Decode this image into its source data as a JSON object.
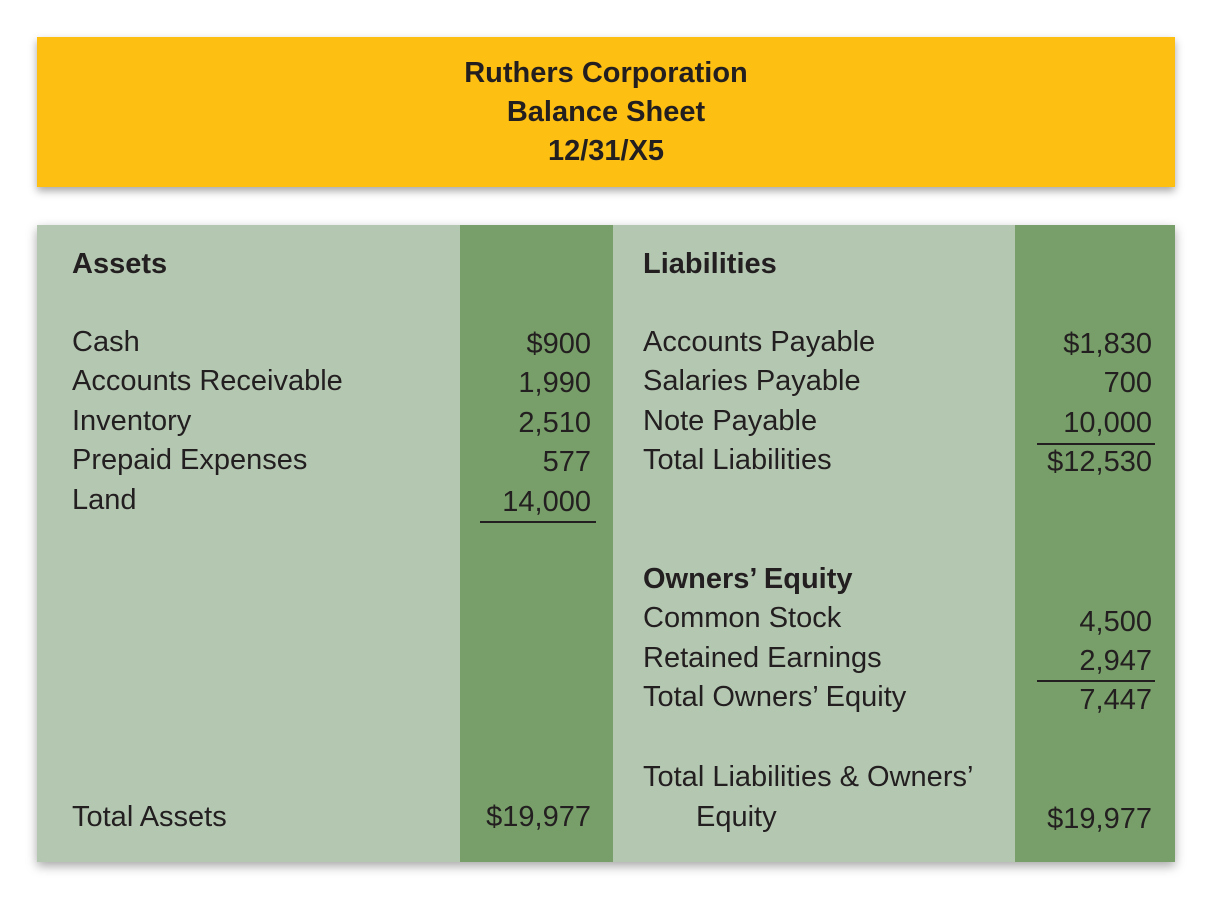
{
  "header": {
    "company": "Ruthers Corporation",
    "statement": "Balance Sheet",
    "date": "12/31/X5"
  },
  "assets": {
    "heading": "Assets",
    "items": [
      {
        "label": "Cash",
        "value": "$900"
      },
      {
        "label": "Accounts Receivable",
        "value": "1,990"
      },
      {
        "label": "Inventory",
        "value": "2,510"
      },
      {
        "label": "Prepaid Expenses",
        "value": "577"
      },
      {
        "label": "Land",
        "value": "14,000"
      }
    ],
    "total_label": "Total Assets",
    "total_value": "$19,977"
  },
  "liabilities": {
    "heading": "Liabilities",
    "items": [
      {
        "label": "Accounts Payable",
        "value": "$1,830"
      },
      {
        "label": "Salaries Payable",
        "value": "700"
      },
      {
        "label": "Note Payable",
        "value": "10,000"
      }
    ],
    "total_label": "Total Liabilities",
    "total_value": "$12,530"
  },
  "equity": {
    "heading": "Owners’ Equity",
    "items": [
      {
        "label": "Common Stock",
        "value": "4,500"
      },
      {
        "label": "Retained Earnings",
        "value": "2,947"
      }
    ],
    "total_label": "Total Owners’ Equity",
    "total_value": "7,447"
  },
  "grand_total": {
    "label_line1": "Total Liabilities & Owners’",
    "label_line2": "Equity",
    "value": "$19,977"
  },
  "colors": {
    "header_bg": "#fcbf12",
    "sheet_bg": "#b4c7b1",
    "value_band": "#789f69"
  }
}
